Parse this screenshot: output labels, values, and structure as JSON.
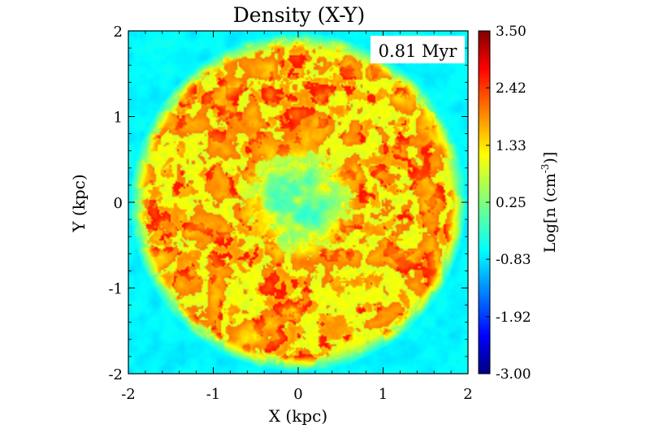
{
  "chart_data": {
    "type": "heatmap",
    "title": "Density (X-Y)",
    "xlabel": "X (kpc)",
    "ylabel": "Y (kpc)",
    "xlim": [
      -2,
      2
    ],
    "ylim": [
      -2,
      2
    ],
    "x_ticks": [
      "-2",
      "-1",
      "0",
      "1",
      "2"
    ],
    "y_ticks": [
      "-2",
      "-1",
      "0",
      "1",
      "2"
    ],
    "annotation": "0.81 Myr",
    "colorbar": {
      "label": "Log[n (cm",
      "label_superscript": "-3",
      "label_suffix": ")]",
      "range": [
        -3.0,
        3.5
      ],
      "tick_labels": [
        "3.50",
        "2.42",
        "1.33",
        "0.25",
        "-0.83",
        "-1.92",
        "-3.00"
      ],
      "colormap": "jet"
    },
    "description_values": {
      "background_level": -0.6,
      "shell_radius_kpc": [
        0.7,
        1.9
      ],
      "shell_level_range": [
        1.0,
        3.0
      ],
      "core_level_range": [
        -2.2,
        0.2
      ]
    },
    "colors": {
      "background": "#ffffff",
      "axis": "#000000",
      "field": "#33ccdd"
    }
  }
}
